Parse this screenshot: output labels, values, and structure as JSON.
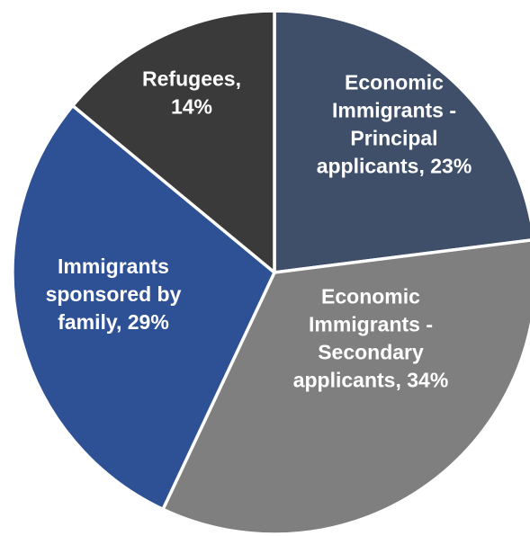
{
  "chart_data": {
    "type": "pie",
    "title": "",
    "slices": [
      {
        "name": "Economic Immigrants - Principal applicants",
        "value": 23,
        "label_lines": [
          "Economic",
          "Immigrants -",
          "Principal",
          "applicants, 23%"
        ],
        "color": "#3f4e69"
      },
      {
        "name": "Economic Immigrants - Secondary applicants",
        "value": 34,
        "label_lines": [
          "Economic",
          "Immigrants -",
          "Secondary",
          "applicants, 34%"
        ],
        "color": "#7f7f7f"
      },
      {
        "name": "Immigrants sponsored by family",
        "value": 29,
        "label_lines": [
          "Immigrants",
          "sponsored by",
          "family, 29%"
        ],
        "color": "#2e5196"
      },
      {
        "name": "Refugees",
        "value": 14,
        "label_lines": [
          "Refugees,",
          "14%"
        ],
        "color": "#3a3a3a"
      }
    ],
    "start_angle_deg": 0,
    "direction": "clockwise",
    "legend": "none",
    "data_labels": "inside"
  }
}
